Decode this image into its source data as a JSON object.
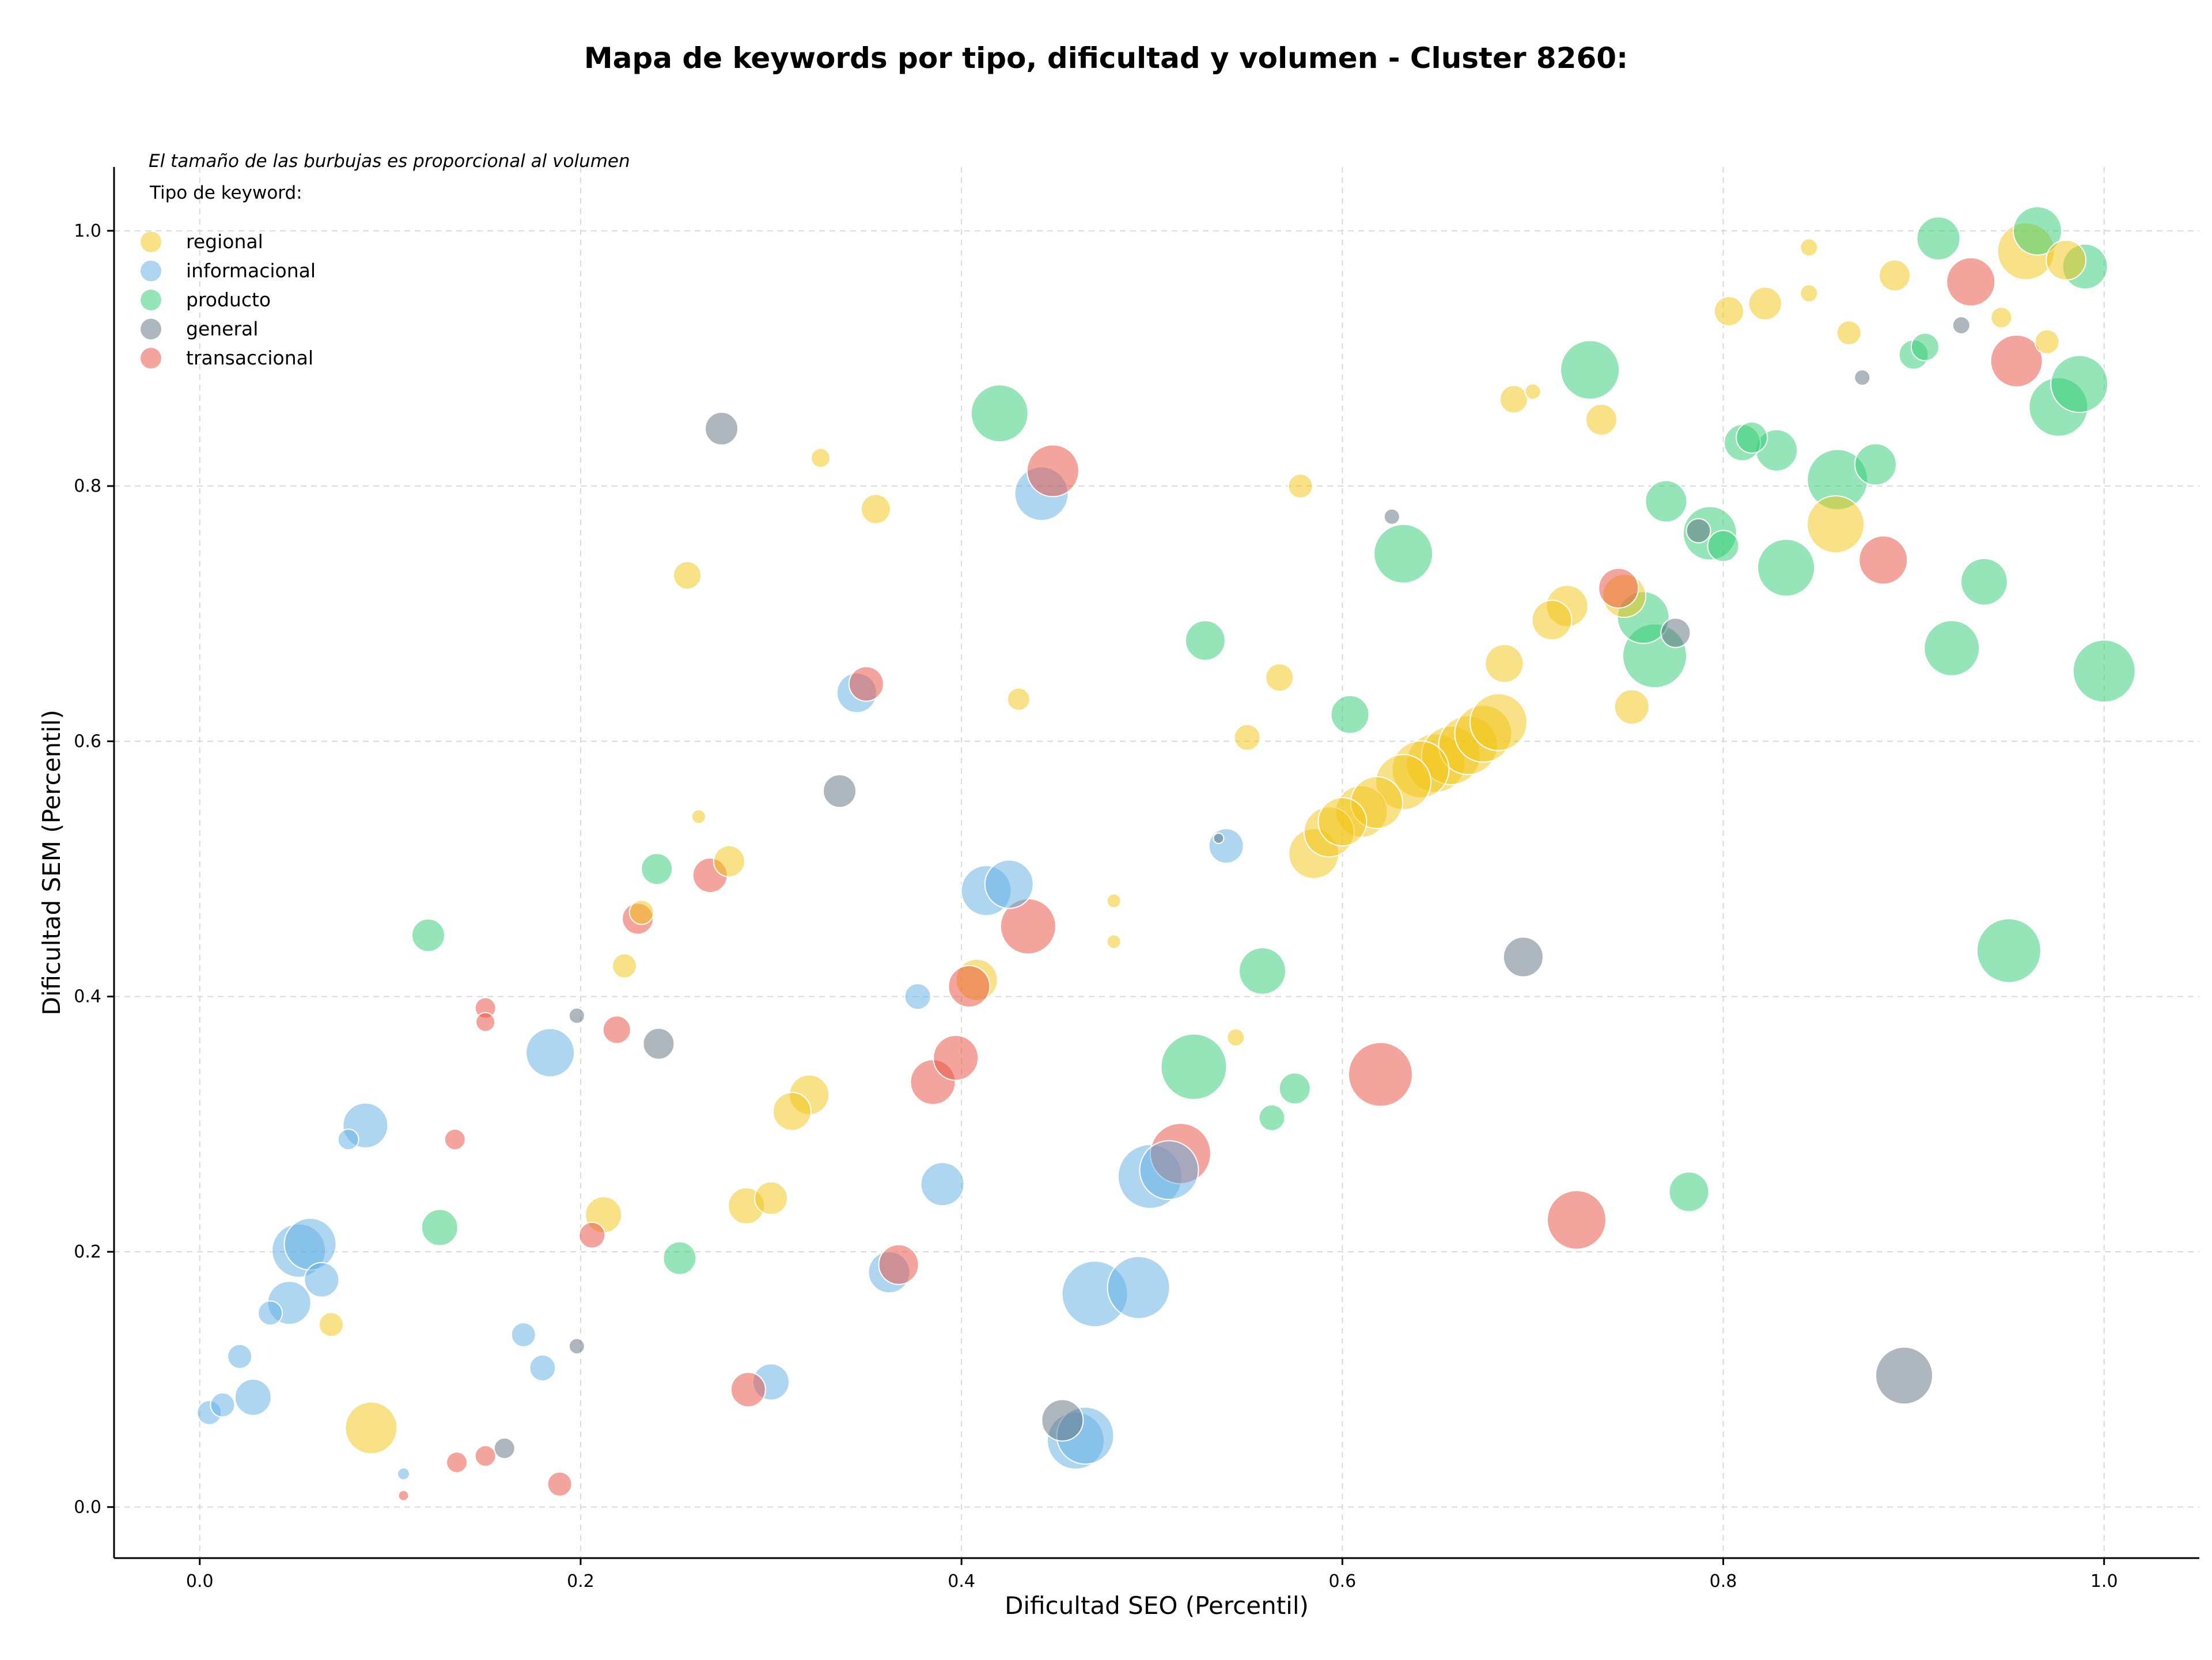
{
  "chart_data": {
    "type": "scatter",
    "title": "Mapa de keywords por tipo, dificultad y volumen - Cluster 8260:",
    "xlabel": "Dificultad SEO (Percentil)",
    "ylabel": "Dificultad SEM (Percentil)",
    "note": "El tamaño de las burbujas es proporcional al volumen",
    "legend_title": "Tipo de keyword:",
    "legend_position": "top-left",
    "grid": true,
    "xlim": [
      -0.045,
      1.05
    ],
    "ylim": [
      -0.04,
      1.05
    ],
    "xticks": [
      "0.0",
      "0.2",
      "0.4",
      "0.6",
      "0.8",
      "1.0"
    ],
    "yticks": [
      "0.0",
      "0.2",
      "0.4",
      "0.6",
      "0.8",
      "1.0"
    ],
    "series": [
      {
        "name": "regional",
        "color": "#f1c40f",
        "points": [
          [
            0.09,
            0.062,
            3
          ],
          [
            0.069,
            0.143,
            1.4
          ],
          [
            0.212,
            0.229,
            2.1
          ],
          [
            0.223,
            0.424,
            1.4
          ],
          [
            0.232,
            0.466,
            1.4
          ],
          [
            0.262,
            0.541,
            0.8
          ],
          [
            0.256,
            0.73,
            1.6
          ],
          [
            0.278,
            0.506,
            1.8
          ],
          [
            0.287,
            0.236,
            2.1
          ],
          [
            0.3,
            0.242,
            1.9
          ],
          [
            0.311,
            0.31,
            2.2
          ],
          [
            0.32,
            0.323,
            2.3
          ],
          [
            0.326,
            0.822,
            1.1
          ],
          [
            0.355,
            0.782,
            1.7
          ],
          [
            0.408,
            0.413,
            2.4
          ],
          [
            0.43,
            0.633,
            1.3
          ],
          [
            0.48,
            0.475,
            0.8
          ],
          [
            0.48,
            0.443,
            0.8
          ],
          [
            0.544,
            0.368,
            1.0
          ],
          [
            0.55,
            0.603,
            1.5
          ],
          [
            0.567,
            0.65,
            1.6
          ],
          [
            0.578,
            0.8,
            1.4
          ],
          [
            0.585,
            0.512,
            2.9
          ],
          [
            0.593,
            0.529,
            2.9
          ],
          [
            0.6,
            0.537,
            2.8
          ],
          [
            0.61,
            0.545,
            3.0
          ],
          [
            0.618,
            0.552,
            3.0
          ],
          [
            0.632,
            0.568,
            3.2
          ],
          [
            0.641,
            0.578,
            3.3
          ],
          [
            0.649,
            0.583,
            3.4
          ],
          [
            0.657,
            0.589,
            3.4
          ],
          [
            0.666,
            0.597,
            3.4
          ],
          [
            0.674,
            0.606,
            3.3
          ],
          [
            0.682,
            0.615,
            3.3
          ],
          [
            0.685,
            0.661,
            2.2
          ],
          [
            0.69,
            0.868,
            1.6
          ],
          [
            0.7,
            0.874,
            0.9
          ],
          [
            0.71,
            0.695,
            2.3
          ],
          [
            0.718,
            0.706,
            2.4
          ],
          [
            0.736,
            0.852,
            1.8
          ],
          [
            0.748,
            0.714,
            2.5
          ],
          [
            0.752,
            0.627,
            2.0
          ],
          [
            0.803,
            0.937,
            1.7
          ],
          [
            0.822,
            0.943,
            1.9
          ],
          [
            0.845,
            0.987,
            1.0
          ],
          [
            0.845,
            0.951,
            1.0
          ],
          [
            0.866,
            0.92,
            1.4
          ],
          [
            0.859,
            0.77,
            3.3
          ],
          [
            0.89,
            0.965,
            1.8
          ],
          [
            0.946,
            0.932,
            1.2
          ],
          [
            0.959,
            0.984,
            3.3
          ],
          [
            0.97,
            0.913,
            1.4
          ],
          [
            0.98,
            0.977,
            2.3
          ]
        ]
      },
      {
        "name": "informacional",
        "color": "#5dade2",
        "points": [
          [
            0.005,
            0.074,
            1.4
          ],
          [
            0.012,
            0.08,
            1.4
          ],
          [
            0.021,
            0.118,
            1.4
          ],
          [
            0.028,
            0.086,
            2.1
          ],
          [
            0.037,
            0.152,
            1.4
          ],
          [
            0.047,
            0.16,
            2.5
          ],
          [
            0.052,
            0.201,
            3.1
          ],
          [
            0.058,
            0.206,
            3.0
          ],
          [
            0.064,
            0.178,
            2.0
          ],
          [
            0.078,
            0.288,
            1.2
          ],
          [
            0.087,
            0.299,
            2.6
          ],
          [
            0.107,
            0.026,
            0.7
          ],
          [
            0.17,
            0.135,
            1.4
          ],
          [
            0.18,
            0.109,
            1.5
          ],
          [
            0.184,
            0.356,
            2.8
          ],
          [
            0.3,
            0.098,
            2.1
          ],
          [
            0.345,
            0.638,
            2.3
          ],
          [
            0.362,
            0.184,
            2.4
          ],
          [
            0.377,
            0.4,
            1.5
          ],
          [
            0.39,
            0.253,
            2.5
          ],
          [
            0.413,
            0.483,
            2.9
          ],
          [
            0.425,
            0.488,
            2.8
          ],
          [
            0.442,
            0.794,
            3.1
          ],
          [
            0.46,
            0.052,
            3.3
          ],
          [
            0.465,
            0.056,
            3.3
          ],
          [
            0.47,
            0.167,
            3.8
          ],
          [
            0.493,
            0.172,
            3.6
          ],
          [
            0.499,
            0.259,
            3.7
          ],
          [
            0.509,
            0.264,
            3.4
          ],
          [
            0.539,
            0.518,
            2.0
          ]
        ]
      },
      {
        "name": "producto",
        "color": "#2ecc71",
        "points": [
          [
            0.12,
            0.448,
            1.9
          ],
          [
            0.126,
            0.219,
            2.1
          ],
          [
            0.24,
            0.5,
            1.8
          ],
          [
            0.252,
            0.195,
            1.9
          ],
          [
            0.42,
            0.857,
            3.3
          ],
          [
            0.522,
            0.345,
            3.8
          ],
          [
            0.528,
            0.679,
            2.3
          ],
          [
            0.558,
            0.42,
            2.7
          ],
          [
            0.563,
            0.305,
            1.5
          ],
          [
            0.575,
            0.328,
            1.8
          ],
          [
            0.604,
            0.621,
            2.2
          ],
          [
            0.632,
            0.747,
            3.4
          ],
          [
            0.73,
            0.891,
            3.4
          ],
          [
            0.758,
            0.697,
            3.0
          ],
          [
            0.764,
            0.667,
            3.7
          ],
          [
            0.77,
            0.788,
            2.4
          ],
          [
            0.782,
            0.247,
            2.3
          ],
          [
            0.793,
            0.763,
            3.1
          ],
          [
            0.8,
            0.753,
            1.8
          ],
          [
            0.81,
            0.834,
            2.1
          ],
          [
            0.815,
            0.838,
            1.8
          ],
          [
            0.828,
            0.828,
            2.4
          ],
          [
            0.833,
            0.736,
            3.3
          ],
          [
            0.86,
            0.805,
            3.5
          ],
          [
            0.88,
            0.817,
            2.4
          ],
          [
            0.9,
            0.903,
            1.7
          ],
          [
            0.906,
            0.909,
            1.6
          ],
          [
            0.913,
            0.994,
            2.5
          ],
          [
            0.92,
            0.673,
            3.2
          ],
          [
            0.937,
            0.725,
            2.7
          ],
          [
            0.95,
            0.436,
            3.7
          ],
          [
            0.965,
            1.0,
            2.8
          ],
          [
            0.976,
            0.862,
            3.4
          ],
          [
            0.987,
            0.88,
            3.3
          ],
          [
            0.99,
            0.972,
            2.6
          ],
          [
            1.0,
            0.655,
            3.6
          ]
        ]
      },
      {
        "name": "general",
        "color": "#5d6d7e",
        "points": [
          [
            0.16,
            0.046,
            1.2
          ],
          [
            0.198,
            0.126,
            0.9
          ],
          [
            0.198,
            0.385,
            0.9
          ],
          [
            0.241,
            0.363,
            1.8
          ],
          [
            0.274,
            0.845,
            1.9
          ],
          [
            0.336,
            0.561,
            1.9
          ],
          [
            0.453,
            0.068,
            2.4
          ],
          [
            0.535,
            0.524,
            0.6
          ],
          [
            0.626,
            0.776,
            0.9
          ],
          [
            0.695,
            0.431,
            2.3
          ],
          [
            0.775,
            0.685,
            1.7
          ],
          [
            0.787,
            0.765,
            1.4
          ],
          [
            0.873,
            0.885,
            0.9
          ],
          [
            0.895,
            0.103,
            3.3
          ],
          [
            0.925,
            0.926,
            1.0
          ]
        ]
      },
      {
        "name": "transaccional",
        "color": "#e74c3c",
        "points": [
          [
            0.107,
            0.009,
            0.6
          ],
          [
            0.135,
            0.035,
            1.2
          ],
          [
            0.134,
            0.288,
            1.2
          ],
          [
            0.15,
            0.04,
            1.2
          ],
          [
            0.15,
            0.391,
            1.2
          ],
          [
            0.15,
            0.38,
            1.1
          ],
          [
            0.189,
            0.018,
            1.4
          ],
          [
            0.206,
            0.213,
            1.5
          ],
          [
            0.219,
            0.374,
            1.6
          ],
          [
            0.23,
            0.461,
            1.8
          ],
          [
            0.268,
            0.495,
            2.0
          ],
          [
            0.288,
            0.092,
            2.0
          ],
          [
            0.35,
            0.645,
            2.0
          ],
          [
            0.367,
            0.19,
            2.3
          ],
          [
            0.385,
            0.333,
            2.6
          ],
          [
            0.397,
            0.352,
            2.6
          ],
          [
            0.404,
            0.408,
            2.4
          ],
          [
            0.435,
            0.455,
            3.2
          ],
          [
            0.448,
            0.812,
            3.0
          ],
          [
            0.515,
            0.277,
            3.5
          ],
          [
            0.62,
            0.339,
            3.7
          ],
          [
            0.723,
            0.225,
            3.4
          ],
          [
            0.745,
            0.72,
            2.3
          ],
          [
            0.884,
            0.742,
            2.8
          ],
          [
            0.93,
            0.96,
            2.8
          ],
          [
            0.954,
            0.898,
            3.0
          ]
        ]
      }
    ]
  }
}
